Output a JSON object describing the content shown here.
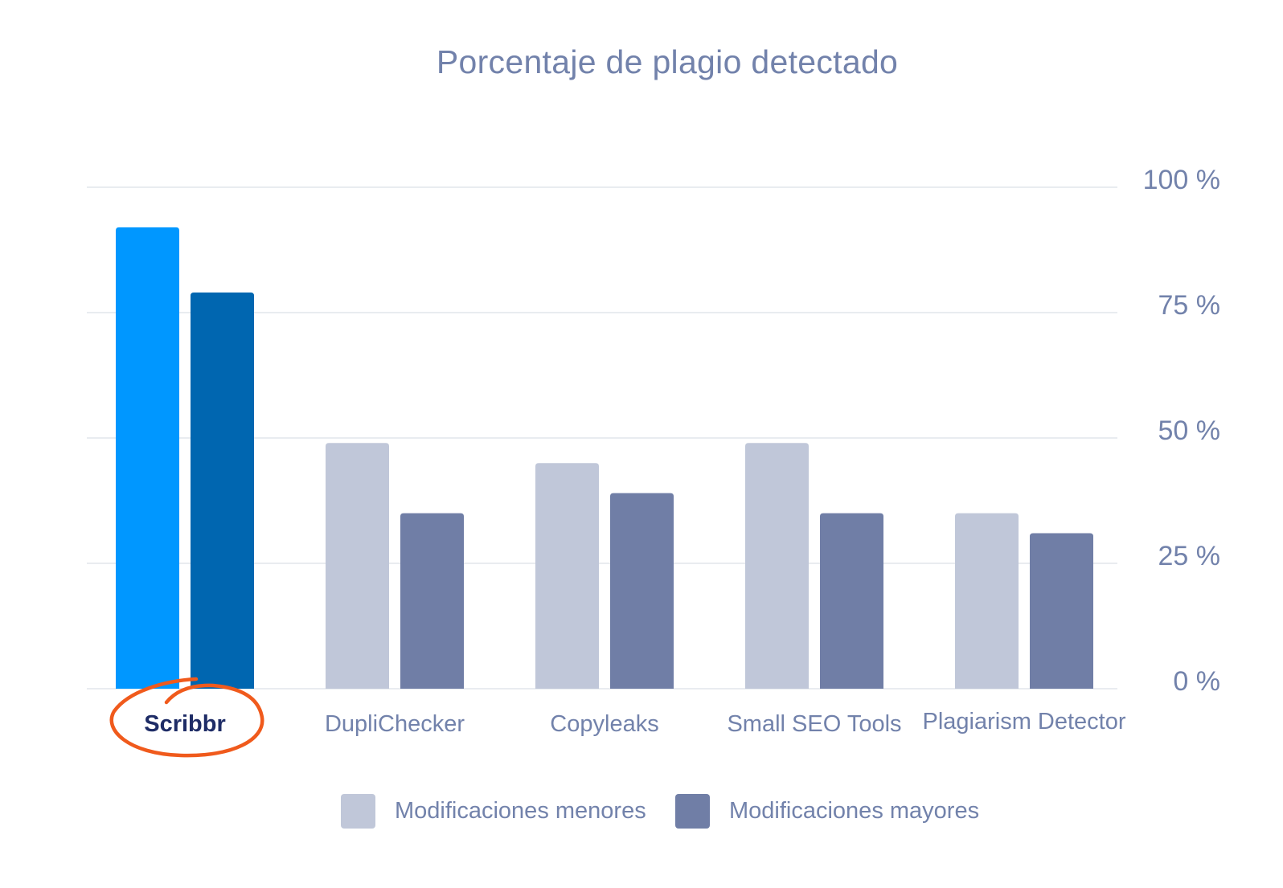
{
  "chart_data": {
    "type": "bar",
    "title": "Porcentaje de plagio detectado",
    "categories": [
      "Scribbr",
      "DupliChecker",
      "Copyleaks",
      "Small SEO Tools",
      "Plagiarism Detector"
    ],
    "series": [
      {
        "name": "Modificaciones menores",
        "values": [
          92,
          49,
          45,
          49,
          35
        ],
        "color": "#c0c7d9",
        "highlight_color": "#0097ff"
      },
      {
        "name": "Modificaciones mayores",
        "values": [
          79,
          35,
          39,
          35,
          31
        ],
        "color": "#707ea6",
        "highlight_color": "#0066b0"
      }
    ],
    "highlighted_category": "Scribbr",
    "ylim": [
      0,
      100
    ],
    "y_ticks": [
      0,
      25,
      50,
      75,
      100
    ],
    "y_tick_labels": [
      "0 %",
      "25 %",
      "50 %",
      "75 %",
      "100 %"
    ],
    "y_axis_side": "right",
    "grid": true,
    "legend_position": "bottom-center",
    "colors": {
      "text": "#7282ab",
      "highlight_text": "#1e2c66",
      "grid": "#e2e5ec",
      "highlight_circle": "#f05a1c"
    }
  }
}
